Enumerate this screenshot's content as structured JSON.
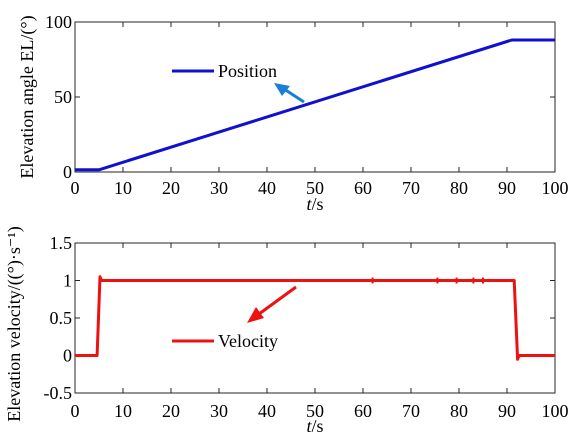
{
  "chart_data": [
    {
      "type": "line",
      "ylabel": "Elevation angle EL/(°)",
      "xlabel": "t/s",
      "xlabel_italic": "t",
      "xlabel_rest": "/s",
      "xlim": [
        0,
        100
      ],
      "ylim": [
        0,
        100
      ],
      "xticks": [
        0,
        10,
        20,
        30,
        40,
        50,
        60,
        70,
        80,
        90,
        100
      ],
      "yticks": [
        0,
        50,
        100
      ],
      "grid": false,
      "legend": "Position",
      "arrow_color": "#1a7fd4",
      "series": [
        {
          "name": "Position",
          "color": "#1010d0",
          "x": [
            0,
            5,
            91,
            100
          ],
          "y": [
            1.5,
            1.5,
            88,
            88
          ]
        }
      ]
    },
    {
      "type": "line",
      "ylabel": "Elevation velocity/((°)·s⁻¹)",
      "xlabel": "t/s",
      "xlabel_italic": "t",
      "xlabel_rest": "/s",
      "xlim": [
        0,
        100
      ],
      "ylim": [
        -0.5,
        1.5
      ],
      "xticks": [
        0,
        10,
        20,
        30,
        40,
        50,
        60,
        70,
        80,
        90,
        100
      ],
      "yticks": [
        -0.5,
        0,
        0.5,
        1,
        1.5
      ],
      "ytick_labels": [
        "-0.5",
        "0",
        "0.5",
        "1",
        "1.5"
      ],
      "grid": false,
      "legend": "Velocity",
      "arrow_color": "#ee1111",
      "series": [
        {
          "name": "Velocity",
          "color": "#ee1111",
          "x": [
            0,
            4.6,
            5.2,
            5.5,
            5.8,
            91.5,
            92.2,
            92.5,
            100
          ],
          "y": [
            0,
            0,
            1.05,
            1.0,
            1.0,
            1.0,
            -0.05,
            0,
            0
          ]
        }
      ],
      "spikes_x": [
        62,
        75.5,
        79.5,
        83,
        85
      ]
    }
  ]
}
